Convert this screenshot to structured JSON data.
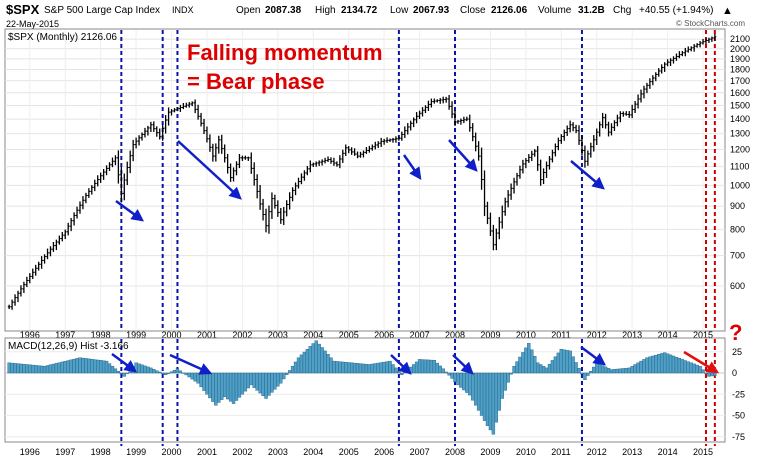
{
  "header": {
    "symbol": "$SPX",
    "name": "S&P 500 Large Cap Index",
    "exchange": "INDX",
    "date": "22-May-2015",
    "open_label": "Open",
    "open": "2087.38",
    "high_label": "High",
    "high": "2134.72",
    "low_label": "Low",
    "low": "2067.93",
    "close_label": "Close",
    "close": "2126.06",
    "volume_label": "Volume",
    "volume": "31.2B",
    "chg_label": "Chg",
    "chg": "+40.55 (+1.94%)",
    "watermark": "© StockCharts.com"
  },
  "price_panel": {
    "legend": "$SPX (Monthly) 2126.06"
  },
  "macd_panel": {
    "legend": "MACD(12,26,9) Hist -3.166"
  },
  "annotations": {
    "title_line1": "Falling momentum",
    "title_line2": "= Bear phase",
    "question_mark": "?"
  },
  "colors": {
    "price_bars": "#000000",
    "histogram": "#4f9fc7",
    "histogram_edge": "#1d5f82",
    "guide_lines": "#0a14a8",
    "recent_guides": "#cc0000",
    "arrows": "#1020c8",
    "recent_arrow": "#e01010",
    "annotation_text": "#dd0000"
  },
  "chart_data": [
    {
      "type": "ohlc",
      "series_name": "$SPX (Monthly)",
      "y_scale": "log",
      "ylim": [
        480,
        2200
      ],
      "y_ticks": [
        600,
        700,
        800,
        900,
        1000,
        1100,
        1200,
        1300,
        1400,
        1500,
        1600,
        1700,
        1800,
        1900,
        2000,
        2100
      ],
      "x_ticks": [
        "1996",
        "1997",
        "1998",
        "1999",
        "2000",
        "2001",
        "2002",
        "2003",
        "2004",
        "2005",
        "2006",
        "2007",
        "2008",
        "2009",
        "2010",
        "2011",
        "2012",
        "2013",
        "2014",
        "2015"
      ],
      "close_anchors": [
        {
          "t": "1995-06",
          "close": 540
        },
        {
          "t": "1996-01",
          "close": 630
        },
        {
          "t": "1997-01",
          "close": 790
        },
        {
          "t": "1997-08",
          "close": 950
        },
        {
          "t": "1998-06",
          "close": 1150
        },
        {
          "t": "1998-08",
          "close": 960
        },
        {
          "t": "1998-12",
          "close": 1230
        },
        {
          "t": "1999-06",
          "close": 1360
        },
        {
          "t": "1999-09",
          "close": 1280
        },
        {
          "t": "1999-12",
          "close": 1450
        },
        {
          "t": "2000-08",
          "close": 1520
        },
        {
          "t": "2000-12",
          "close": 1320
        },
        {
          "t": "2001-03",
          "close": 1160
        },
        {
          "t": "2001-05",
          "close": 1260
        },
        {
          "t": "2001-09",
          "close": 1040
        },
        {
          "t": "2001-12",
          "close": 1150
        },
        {
          "t": "2002-03",
          "close": 1150
        },
        {
          "t": "2002-07",
          "close": 910
        },
        {
          "t": "2002-09",
          "close": 815
        },
        {
          "t": "2002-11",
          "close": 935
        },
        {
          "t": "2003-02",
          "close": 840
        },
        {
          "t": "2003-06",
          "close": 975
        },
        {
          "t": "2003-12",
          "close": 1110
        },
        {
          "t": "2004-06",
          "close": 1140
        },
        {
          "t": "2004-09",
          "close": 1110
        },
        {
          "t": "2004-12",
          "close": 1210
        },
        {
          "t": "2005-04",
          "close": 1160
        },
        {
          "t": "2005-12",
          "close": 1250
        },
        {
          "t": "2006-06",
          "close": 1270
        },
        {
          "t": "2006-12",
          "close": 1420
        },
        {
          "t": "2007-05",
          "close": 1530
        },
        {
          "t": "2007-10",
          "close": 1550
        },
        {
          "t": "2008-01",
          "close": 1380
        },
        {
          "t": "2008-05",
          "close": 1400
        },
        {
          "t": "2008-09",
          "close": 1160
        },
        {
          "t": "2008-11",
          "close": 900
        },
        {
          "t": "2009-02",
          "close": 740
        },
        {
          "t": "2009-06",
          "close": 920
        },
        {
          "t": "2009-12",
          "close": 1115
        },
        {
          "t": "2010-04",
          "close": 1190
        },
        {
          "t": "2010-06",
          "close": 1030
        },
        {
          "t": "2010-12",
          "close": 1255
        },
        {
          "t": "2011-04",
          "close": 1360
        },
        {
          "t": "2011-06",
          "close": 1320
        },
        {
          "t": "2011-09",
          "close": 1130
        },
        {
          "t": "2011-12",
          "close": 1260
        },
        {
          "t": "2012-03",
          "close": 1410
        },
        {
          "t": "2012-05",
          "close": 1310
        },
        {
          "t": "2012-09",
          "close": 1440
        },
        {
          "t": "2012-12",
          "close": 1430
        },
        {
          "t": "2013-05",
          "close": 1630
        },
        {
          "t": "2013-12",
          "close": 1850
        },
        {
          "t": "2014-06",
          "close": 1960
        },
        {
          "t": "2014-12",
          "close": 2060
        },
        {
          "t": "2015-05",
          "close": 2126
        }
      ],
      "blue_guides": [
        "1998-08",
        "1999-10",
        "2000-03",
        "2006-06",
        "2008-01",
        "2011-08"
      ],
      "red_guides": [
        "2015-02",
        "2015-05"
      ]
    },
    {
      "type": "bar",
      "series_name": "MACD(12,26,9) Hist",
      "ylim": [
        -80,
        40
      ],
      "y_ticks": [
        25,
        0,
        -25,
        -50,
        -75
      ],
      "x_ticks": [
        "1996",
        "1997",
        "1998",
        "1999",
        "2000",
        "2001",
        "2002",
        "2003",
        "2004",
        "2005",
        "2006",
        "2007",
        "2008",
        "2009",
        "2010",
        "2011",
        "2012",
        "2013",
        "2014",
        "2015"
      ],
      "hist_anchors": [
        {
          "t": "1995-06",
          "v": 12
        },
        {
          "t": "1996-06",
          "v": 8
        },
        {
          "t": "1997-06",
          "v": 18
        },
        {
          "t": "1998-03",
          "v": 14
        },
        {
          "t": "1998-09",
          "v": -4
        },
        {
          "t": "1999-01",
          "v": 12
        },
        {
          "t": "1999-06",
          "v": 6
        },
        {
          "t": "1999-11",
          "v": -2
        },
        {
          "t": "2000-03",
          "v": 5
        },
        {
          "t": "2000-10",
          "v": -12
        },
        {
          "t": "2001-04",
          "v": -38
        },
        {
          "t": "2001-07",
          "v": -28
        },
        {
          "t": "2001-10",
          "v": -36
        },
        {
          "t": "2002-04",
          "v": -14
        },
        {
          "t": "2002-09",
          "v": -30
        },
        {
          "t": "2003-02",
          "v": -12
        },
        {
          "t": "2003-08",
          "v": 18
        },
        {
          "t": "2004-02",
          "v": 38
        },
        {
          "t": "2004-08",
          "v": 14
        },
        {
          "t": "2005-02",
          "v": 12
        },
        {
          "t": "2005-08",
          "v": 10
        },
        {
          "t": "2006-03",
          "v": 14
        },
        {
          "t": "2006-07",
          "v": -2
        },
        {
          "t": "2007-01",
          "v": 16
        },
        {
          "t": "2007-06",
          "v": 15
        },
        {
          "t": "2007-09",
          "v": 5
        },
        {
          "t": "2008-02",
          "v": -14
        },
        {
          "t": "2008-06",
          "v": -26
        },
        {
          "t": "2008-12",
          "v": -62
        },
        {
          "t": "2009-02",
          "v": -72
        },
        {
          "t": "2009-05",
          "v": -30
        },
        {
          "t": "2009-09",
          "v": 8
        },
        {
          "t": "2010-02",
          "v": 35
        },
        {
          "t": "2010-05",
          "v": 12
        },
        {
          "t": "2010-08",
          "v": 6
        },
        {
          "t": "2011-01",
          "v": 28
        },
        {
          "t": "2011-04",
          "v": 26
        },
        {
          "t": "2011-09",
          "v": -8
        },
        {
          "t": "2012-01",
          "v": 12
        },
        {
          "t": "2012-06",
          "v": 4
        },
        {
          "t": "2012-12",
          "v": 6
        },
        {
          "t": "2013-06",
          "v": 18
        },
        {
          "t": "2013-12",
          "v": 24
        },
        {
          "t": "2014-06",
          "v": 16
        },
        {
          "t": "2014-12",
          "v": 8
        },
        {
          "t": "2015-03",
          "v": -4
        },
        {
          "t": "2015-05",
          "v": -3
        }
      ]
    }
  ]
}
